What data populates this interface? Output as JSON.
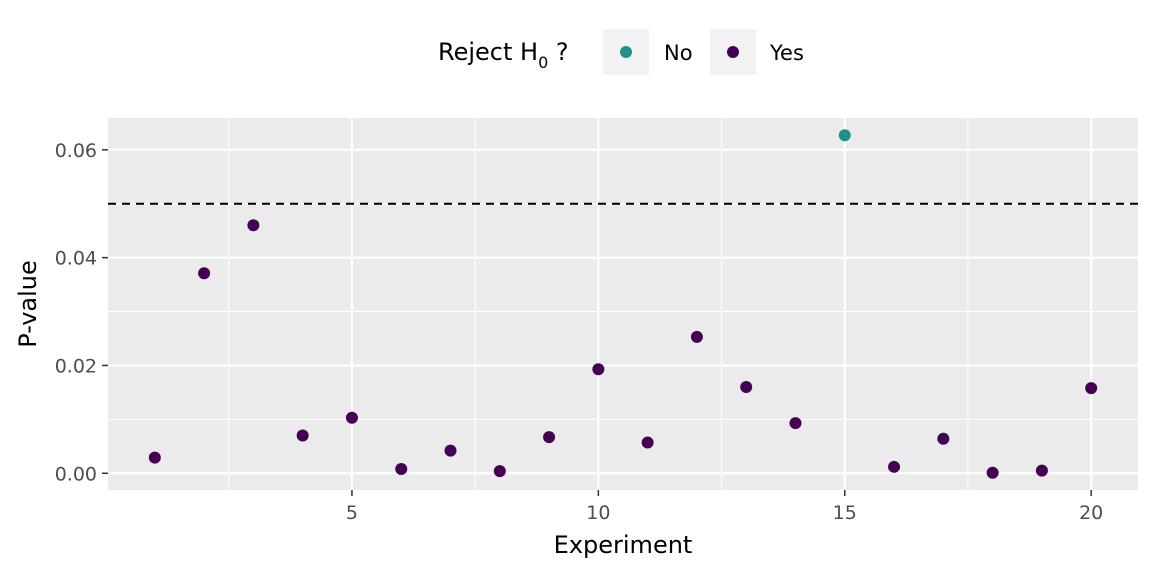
{
  "chart_data": {
    "type": "scatter",
    "xlabel": "Experiment",
    "ylabel": "P-value",
    "xlim": [
      0.05,
      20.95
    ],
    "ylim": [
      -0.0031,
      0.0659
    ],
    "x_ticks": [
      5,
      10,
      15,
      20
    ],
    "x_tick_labels": [
      "5",
      "10",
      "15",
      "20"
    ],
    "y_ticks": [
      0.0,
      0.02,
      0.04,
      0.06
    ],
    "y_tick_labels": [
      "0.00",
      "0.02",
      "0.04",
      "0.06"
    ],
    "threshold": 0.05,
    "grid": true,
    "legend": {
      "title_main": "Reject H",
      "title_sub": "0",
      "title_suffix": " ?",
      "position": "top",
      "entries": [
        {
          "label": "No",
          "color": "#21908C"
        },
        {
          "label": "Yes",
          "color": "#440154"
        }
      ]
    },
    "series": [
      {
        "name": "No",
        "color": "#21908C",
        "points": [
          {
            "x": 15,
            "y": 0.0627
          }
        ]
      },
      {
        "name": "Yes",
        "color": "#440154",
        "points": [
          {
            "x": 1,
            "y": 0.0029
          },
          {
            "x": 2,
            "y": 0.0371
          },
          {
            "x": 3,
            "y": 0.046
          },
          {
            "x": 4,
            "y": 0.007
          },
          {
            "x": 5,
            "y": 0.0103
          },
          {
            "x": 6,
            "y": 0.0008
          },
          {
            "x": 7,
            "y": 0.0042
          },
          {
            "x": 8,
            "y": 0.0004
          },
          {
            "x": 9,
            "y": 0.0067
          },
          {
            "x": 10,
            "y": 0.0193
          },
          {
            "x": 11,
            "y": 0.0057
          },
          {
            "x": 12,
            "y": 0.0253
          },
          {
            "x": 13,
            "y": 0.016
          },
          {
            "x": 14,
            "y": 0.0093
          },
          {
            "x": 16,
            "y": 0.0012
          },
          {
            "x": 17,
            "y": 0.0064
          },
          {
            "x": 18,
            "y": 0.0001
          },
          {
            "x": 19,
            "y": 0.0005
          },
          {
            "x": 20,
            "y": 0.0158
          }
        ]
      }
    ]
  }
}
